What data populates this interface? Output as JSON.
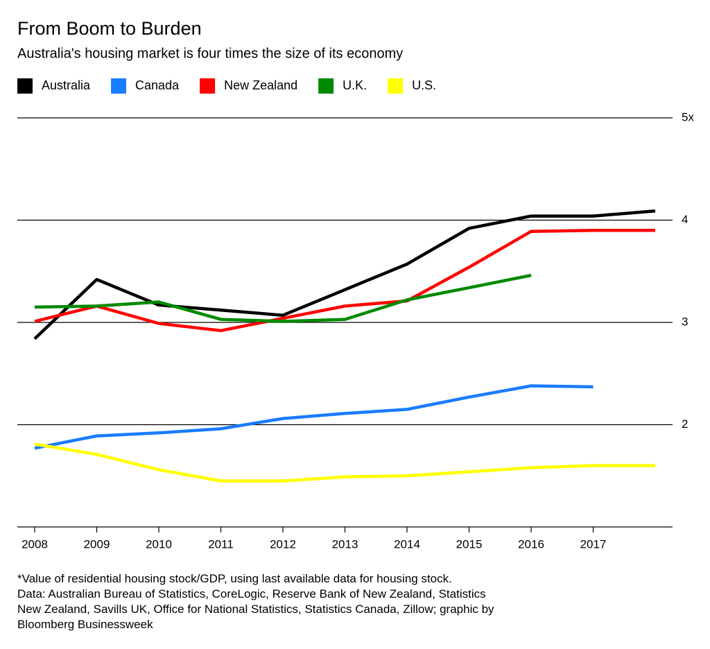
{
  "chart_data": {
    "type": "line",
    "title": "From Boom to Burden",
    "subtitle": "Australia's housing market is four times the size of its economy",
    "x": [
      2008,
      2009,
      2010,
      2011,
      2012,
      2013,
      2014,
      2015,
      2016,
      2017,
      2018
    ],
    "xlim": [
      2008,
      2018
    ],
    "xticks": [
      2008,
      2009,
      2010,
      2011,
      2012,
      2013,
      2014,
      2015,
      2016,
      2017
    ],
    "ylim": [
      1,
      5
    ],
    "yticks": [
      {
        "value": 5,
        "label": "5x"
      },
      4,
      3,
      2
    ],
    "grid": true,
    "legend": "top",
    "series": [
      {
        "name": "Australia",
        "color": "#000000",
        "values": [
          2.84,
          3.42,
          3.17,
          3.12,
          3.07,
          3.32,
          3.57,
          3.92,
          4.04,
          4.04,
          4.09
        ]
      },
      {
        "name": "Canada",
        "color": "#1a7cff",
        "values": [
          1.77,
          1.89,
          1.92,
          1.96,
          2.06,
          2.11,
          2.15,
          2.27,
          2.38,
          2.37,
          null
        ]
      },
      {
        "name": "New Zealand",
        "color": "#ff0000",
        "values": [
          3.01,
          3.16,
          2.99,
          2.92,
          3.04,
          3.16,
          3.21,
          3.54,
          3.89,
          3.9,
          3.9
        ]
      },
      {
        "name": "U.K.",
        "color": "#008a00",
        "values": [
          3.15,
          3.16,
          3.2,
          3.03,
          3.01,
          3.03,
          3.22,
          3.34,
          3.46,
          null,
          null
        ]
      },
      {
        "name": "U.S.",
        "color": "#ffff00",
        "values": [
          1.81,
          1.71,
          1.56,
          1.45,
          1.45,
          1.49,
          1.5,
          1.54,
          1.58,
          1.6,
          1.6
        ]
      }
    ],
    "note": "*Value of residential housing stock/GDP, using last available data for housing stock.",
    "source": [
      "Data: Australian Bureau of Statistics, CoreLogic, Reserve Bank of New Zealand, Statistics",
      "New Zealand, Savills UK, Office for National Statistics, Statistics Canada, Zillow; graphic by",
      "Bloomberg Businessweek"
    ]
  }
}
